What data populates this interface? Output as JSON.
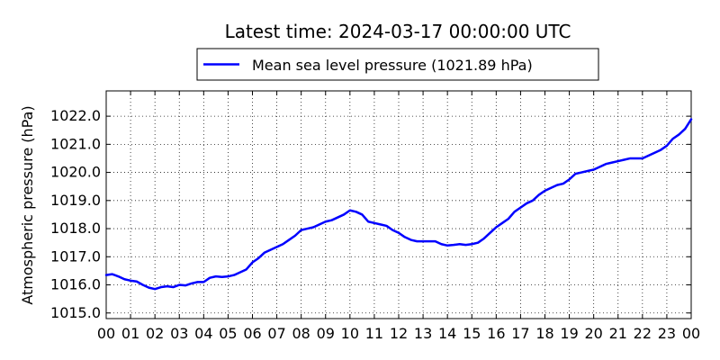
{
  "chart_data": {
    "type": "line",
    "title": "Latest time: 2024-03-17 00:00:00 UTC",
    "xlabel": "",
    "ylabel": "Atmospheric pressure (hPa)",
    "xlim": [
      0,
      24
    ],
    "ylim": [
      1014.8,
      1022.9
    ],
    "x_tick_labels": [
      "00",
      "01",
      "02",
      "03",
      "04",
      "05",
      "06",
      "07",
      "08",
      "09",
      "10",
      "11",
      "12",
      "13",
      "14",
      "15",
      "16",
      "17",
      "18",
      "19",
      "20",
      "21",
      "22",
      "23",
      "00"
    ],
    "y_ticks": [
      1015.0,
      1016.0,
      1017.0,
      1018.0,
      1019.0,
      1020.0,
      1021.0,
      1022.0
    ],
    "y_tick_labels": [
      "1015.0",
      "1016.0",
      "1017.0",
      "1018.0",
      "1019.0",
      "1020.0",
      "1021.0",
      "1022.0"
    ],
    "grid": true,
    "legend_position": "top-center",
    "series": [
      {
        "name": "Mean sea level pressure (1021.89 hPa)",
        "color": "#0000ff",
        "x": [
          0.0,
          0.25,
          0.5,
          0.75,
          1.0,
          1.25,
          1.5,
          1.75,
          2.0,
          2.25,
          2.5,
          2.75,
          3.0,
          3.25,
          3.5,
          3.75,
          4.0,
          4.25,
          4.5,
          4.75,
          5.0,
          5.25,
          5.5,
          5.75,
          6.0,
          6.25,
          6.5,
          6.75,
          7.0,
          7.25,
          7.5,
          7.75,
          8.0,
          8.25,
          8.5,
          8.75,
          9.0,
          9.25,
          9.5,
          9.75,
          10.0,
          10.25,
          10.5,
          10.75,
          11.0,
          11.25,
          11.5,
          11.75,
          12.0,
          12.25,
          12.5,
          12.75,
          13.0,
          13.25,
          13.5,
          13.75,
          14.0,
          14.25,
          14.5,
          14.75,
          15.0,
          15.25,
          15.5,
          15.75,
          16.0,
          16.25,
          16.5,
          16.75,
          17.0,
          17.25,
          17.5,
          17.75,
          18.0,
          18.25,
          18.5,
          18.75,
          19.0,
          19.25,
          19.5,
          19.75,
          20.0,
          20.25,
          20.5,
          20.75,
          21.0,
          21.25,
          21.5,
          21.75,
          22.0,
          22.25,
          22.5,
          22.75,
          23.0,
          23.25,
          23.5,
          23.75,
          24.0
        ],
        "y": [
          1016.35,
          1016.38,
          1016.3,
          1016.2,
          1016.15,
          1016.12,
          1016.0,
          1015.9,
          1015.85,
          1015.92,
          1015.95,
          1015.92,
          1016.0,
          1015.98,
          1016.05,
          1016.1,
          1016.1,
          1016.25,
          1016.3,
          1016.28,
          1016.3,
          1016.35,
          1016.45,
          1016.55,
          1016.8,
          1016.95,
          1017.15,
          1017.25,
          1017.35,
          1017.45,
          1017.6,
          1017.75,
          1017.95,
          1018.0,
          1018.05,
          1018.15,
          1018.25,
          1018.3,
          1018.4,
          1018.5,
          1018.65,
          1018.6,
          1018.5,
          1018.25,
          1018.2,
          1018.15,
          1018.1,
          1017.95,
          1017.85,
          1017.7,
          1017.6,
          1017.55,
          1017.55,
          1017.55,
          1017.55,
          1017.45,
          1017.4,
          1017.42,
          1017.45,
          1017.42,
          1017.45,
          1017.5,
          1017.65,
          1017.85,
          1018.05,
          1018.2,
          1018.35,
          1018.6,
          1018.75,
          1018.9,
          1019.0,
          1019.2,
          1019.35,
          1019.45,
          1019.55,
          1019.6,
          1019.75,
          1019.95,
          1020.0,
          1020.05,
          1020.1,
          1020.2,
          1020.3,
          1020.35,
          1020.4,
          1020.45,
          1020.5,
          1020.5,
          1020.5,
          1020.6,
          1020.7,
          1020.8,
          1020.95,
          1021.2,
          1021.35,
          1021.55,
          1021.89
        ]
      }
    ]
  }
}
